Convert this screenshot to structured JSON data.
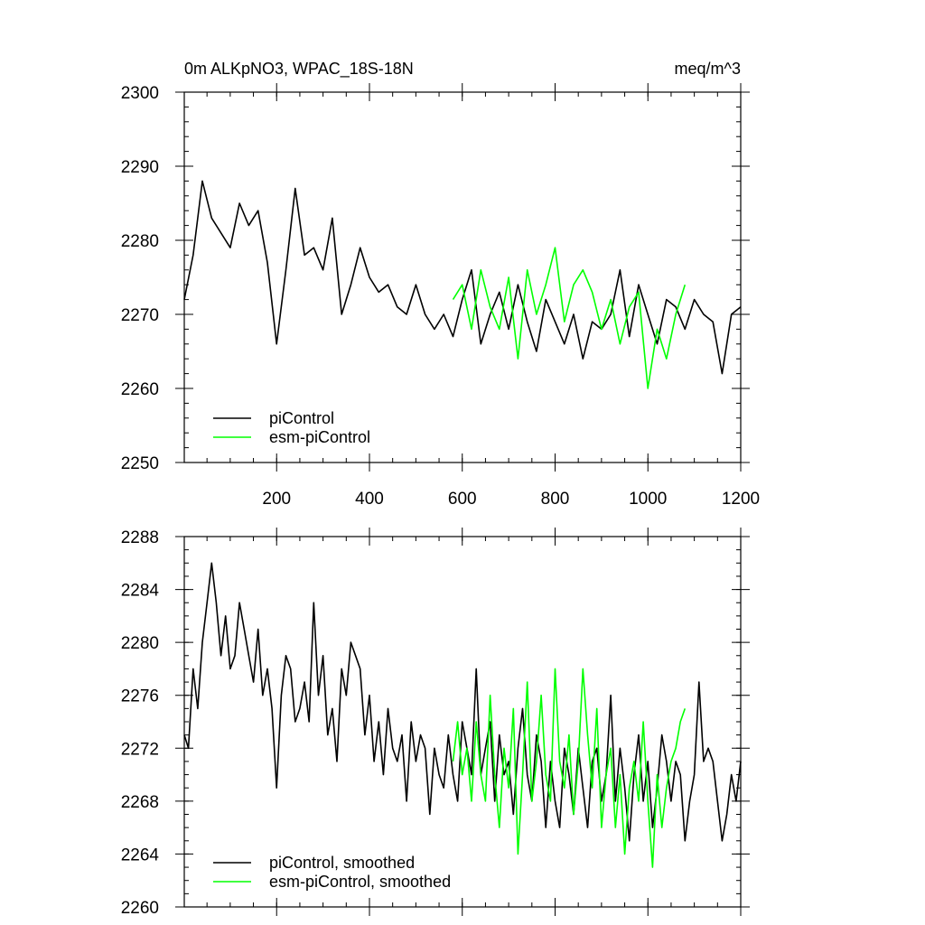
{
  "chart_data": [
    {
      "id": "top",
      "type": "line",
      "title_left": "0m ALKpNO3, WPAC_18S-18N",
      "title_right": "meq/m^3",
      "xlim": [
        1,
        1200
      ],
      "ylim": [
        2250,
        2300
      ],
      "x_major_ticks": [
        200,
        400,
        600,
        800,
        1000,
        1200
      ],
      "x_minor_step": 50,
      "y_major_ticks": [
        2250,
        2260,
        2270,
        2280,
        2290,
        2300
      ],
      "y_minor_step": 2,
      "show_x_tick_labels": true,
      "legend": {
        "position": "bottom-left"
      },
      "series": [
        {
          "name": "piControl",
          "color": "#000000",
          "x": [
            1,
            20,
            40,
            60,
            80,
            100,
            120,
            140,
            160,
            180,
            200,
            220,
            240,
            260,
            280,
            300,
            320,
            340,
            360,
            380,
            400,
            420,
            440,
            460,
            480,
            500,
            520,
            540,
            560,
            580,
            600,
            620,
            640,
            660,
            680,
            700,
            720,
            740,
            760,
            780,
            800,
            820,
            840,
            860,
            880,
            900,
            920,
            940,
            960,
            980,
            1000,
            1020,
            1040,
            1060,
            1080,
            1100,
            1120,
            1140,
            1160,
            1180,
            1200
          ],
          "values": [
            2272,
            2278,
            2288,
            2283,
            2281,
            2279,
            2285,
            2282,
            2284,
            2277,
            2266,
            2276,
            2287,
            2278,
            2279,
            2276,
            2283,
            2270,
            2274,
            2279,
            2275,
            2273,
            2274,
            2271,
            2270,
            2274,
            2270,
            2268,
            2270,
            2267,
            2272,
            2276,
            2266,
            2270,
            2273,
            2268,
            2274,
            2269,
            2265,
            2272,
            2269,
            2266,
            2270,
            2264,
            2269,
            2268,
            2270,
            2276,
            2267,
            2274,
            2270,
            2266,
            2272,
            2271,
            2268,
            2272,
            2270,
            2269,
            2262,
            2270,
            2271
          ]
        },
        {
          "name": "esm-piControl",
          "color": "#00ff00",
          "x": [
            580,
            600,
            620,
            640,
            660,
            680,
            700,
            720,
            740,
            760,
            780,
            800,
            820,
            840,
            860,
            880,
            900,
            920,
            940,
            960,
            980,
            1000,
            1020,
            1040,
            1060,
            1080
          ],
          "values": [
            2272,
            2274,
            2268,
            2276,
            2271,
            2268,
            2275,
            2264,
            2276,
            2270,
            2274,
            2279,
            2269,
            2274,
            2276,
            2273,
            2268,
            2272,
            2266,
            2271,
            2273,
            2260,
            2268,
            2264,
            2270,
            2274
          ]
        }
      ]
    },
    {
      "id": "bottom",
      "type": "line",
      "xlim": [
        1,
        1200
      ],
      "ylim": [
        2260,
        2288
      ],
      "x_major_ticks": [
        200,
        400,
        600,
        800,
        1000,
        1200
      ],
      "x_minor_step": 50,
      "y_major_ticks": [
        2260,
        2264,
        2268,
        2272,
        2276,
        2280,
        2284,
        2288
      ],
      "y_minor_step": 1,
      "show_x_tick_labels": false,
      "legend": {
        "position": "bottom-left"
      },
      "series": [
        {
          "name": "piControl, smoothed",
          "color": "#000000",
          "x": [
            1,
            10,
            20,
            30,
            40,
            50,
            60,
            70,
            80,
            90,
            100,
            110,
            120,
            130,
            140,
            150,
            160,
            170,
            180,
            190,
            200,
            210,
            220,
            230,
            240,
            250,
            260,
            270,
            280,
            290,
            300,
            310,
            320,
            330,
            340,
            350,
            360,
            370,
            380,
            390,
            400,
            410,
            420,
            430,
            440,
            450,
            460,
            470,
            480,
            490,
            500,
            510,
            520,
            530,
            540,
            550,
            560,
            570,
            580,
            590,
            600,
            610,
            620,
            630,
            640,
            650,
            660,
            670,
            680,
            690,
            700,
            710,
            720,
            730,
            740,
            750,
            760,
            770,
            780,
            790,
            800,
            810,
            820,
            830,
            840,
            850,
            860,
            870,
            880,
            890,
            900,
            910,
            920,
            930,
            940,
            950,
            960,
            970,
            980,
            990,
            1000,
            1010,
            1020,
            1030,
            1040,
            1050,
            1060,
            1070,
            1080,
            1090,
            1100,
            1110,
            1120,
            1130,
            1140,
            1150,
            1160,
            1170,
            1180,
            1190,
            1200
          ],
          "values": [
            2273,
            2272,
            2278,
            2275,
            2280,
            2283,
            2286,
            2283,
            2279,
            2282,
            2278,
            2279,
            2283,
            2281,
            2279,
            2277,
            2281,
            2276,
            2278,
            2275,
            2269,
            2276,
            2279,
            2278,
            2274,
            2275,
            2277,
            2274,
            2283,
            2276,
            2279,
            2273,
            2275,
            2271,
            2278,
            2276,
            2280,
            2279,
            2278,
            2273,
            2276,
            2271,
            2274,
            2270,
            2275,
            2272,
            2271,
            2273,
            2268,
            2274,
            2271,
            2273,
            2272,
            2267,
            2272,
            2270,
            2269,
            2273,
            2270,
            2268,
            2274,
            2272,
            2270,
            2278,
            2270,
            2272,
            2274,
            2268,
            2273,
            2270,
            2271,
            2267,
            2272,
            2275,
            2270,
            2268,
            2273,
            2271,
            2266,
            2271,
            2268,
            2266,
            2272,
            2270,
            2267,
            2272,
            2269,
            2266,
            2271,
            2272,
            2268,
            2270,
            2276,
            2268,
            2272,
            2269,
            2265,
            2270,
            2273,
            2268,
            2271,
            2266,
            2269,
            2273,
            2271,
            2268,
            2271,
            2270,
            2265,
            2268,
            2270,
            2277,
            2271,
            2272,
            2271,
            2268,
            2265,
            2267,
            2270,
            2268,
            2271
          ]
        },
        {
          "name": "esm-piControl, smoothed",
          "color": "#00ff00",
          "x": [
            580,
            590,
            600,
            610,
            620,
            630,
            640,
            650,
            660,
            670,
            680,
            690,
            700,
            710,
            720,
            730,
            740,
            750,
            760,
            770,
            780,
            790,
            800,
            810,
            820,
            830,
            840,
            850,
            860,
            870,
            880,
            890,
            900,
            910,
            920,
            930,
            940,
            950,
            960,
            970,
            980,
            990,
            1000,
            1010,
            1020,
            1030,
            1040,
            1050,
            1060,
            1070,
            1080
          ],
          "values": [
            2271,
            2274,
            2270,
            2272,
            2268,
            2274,
            2270,
            2268,
            2276,
            2270,
            2266,
            2272,
            2269,
            2275,
            2264,
            2270,
            2277,
            2268,
            2271,
            2276,
            2270,
            2268,
            2278,
            2271,
            2269,
            2273,
            2267,
            2271,
            2278,
            2273,
            2269,
            2275,
            2266,
            2270,
            2272,
            2266,
            2270,
            2264,
            2269,
            2271,
            2268,
            2274,
            2268,
            2263,
            2270,
            2266,
            2269,
            2271,
            2272,
            2274,
            2275
          ]
        }
      ]
    }
  ]
}
